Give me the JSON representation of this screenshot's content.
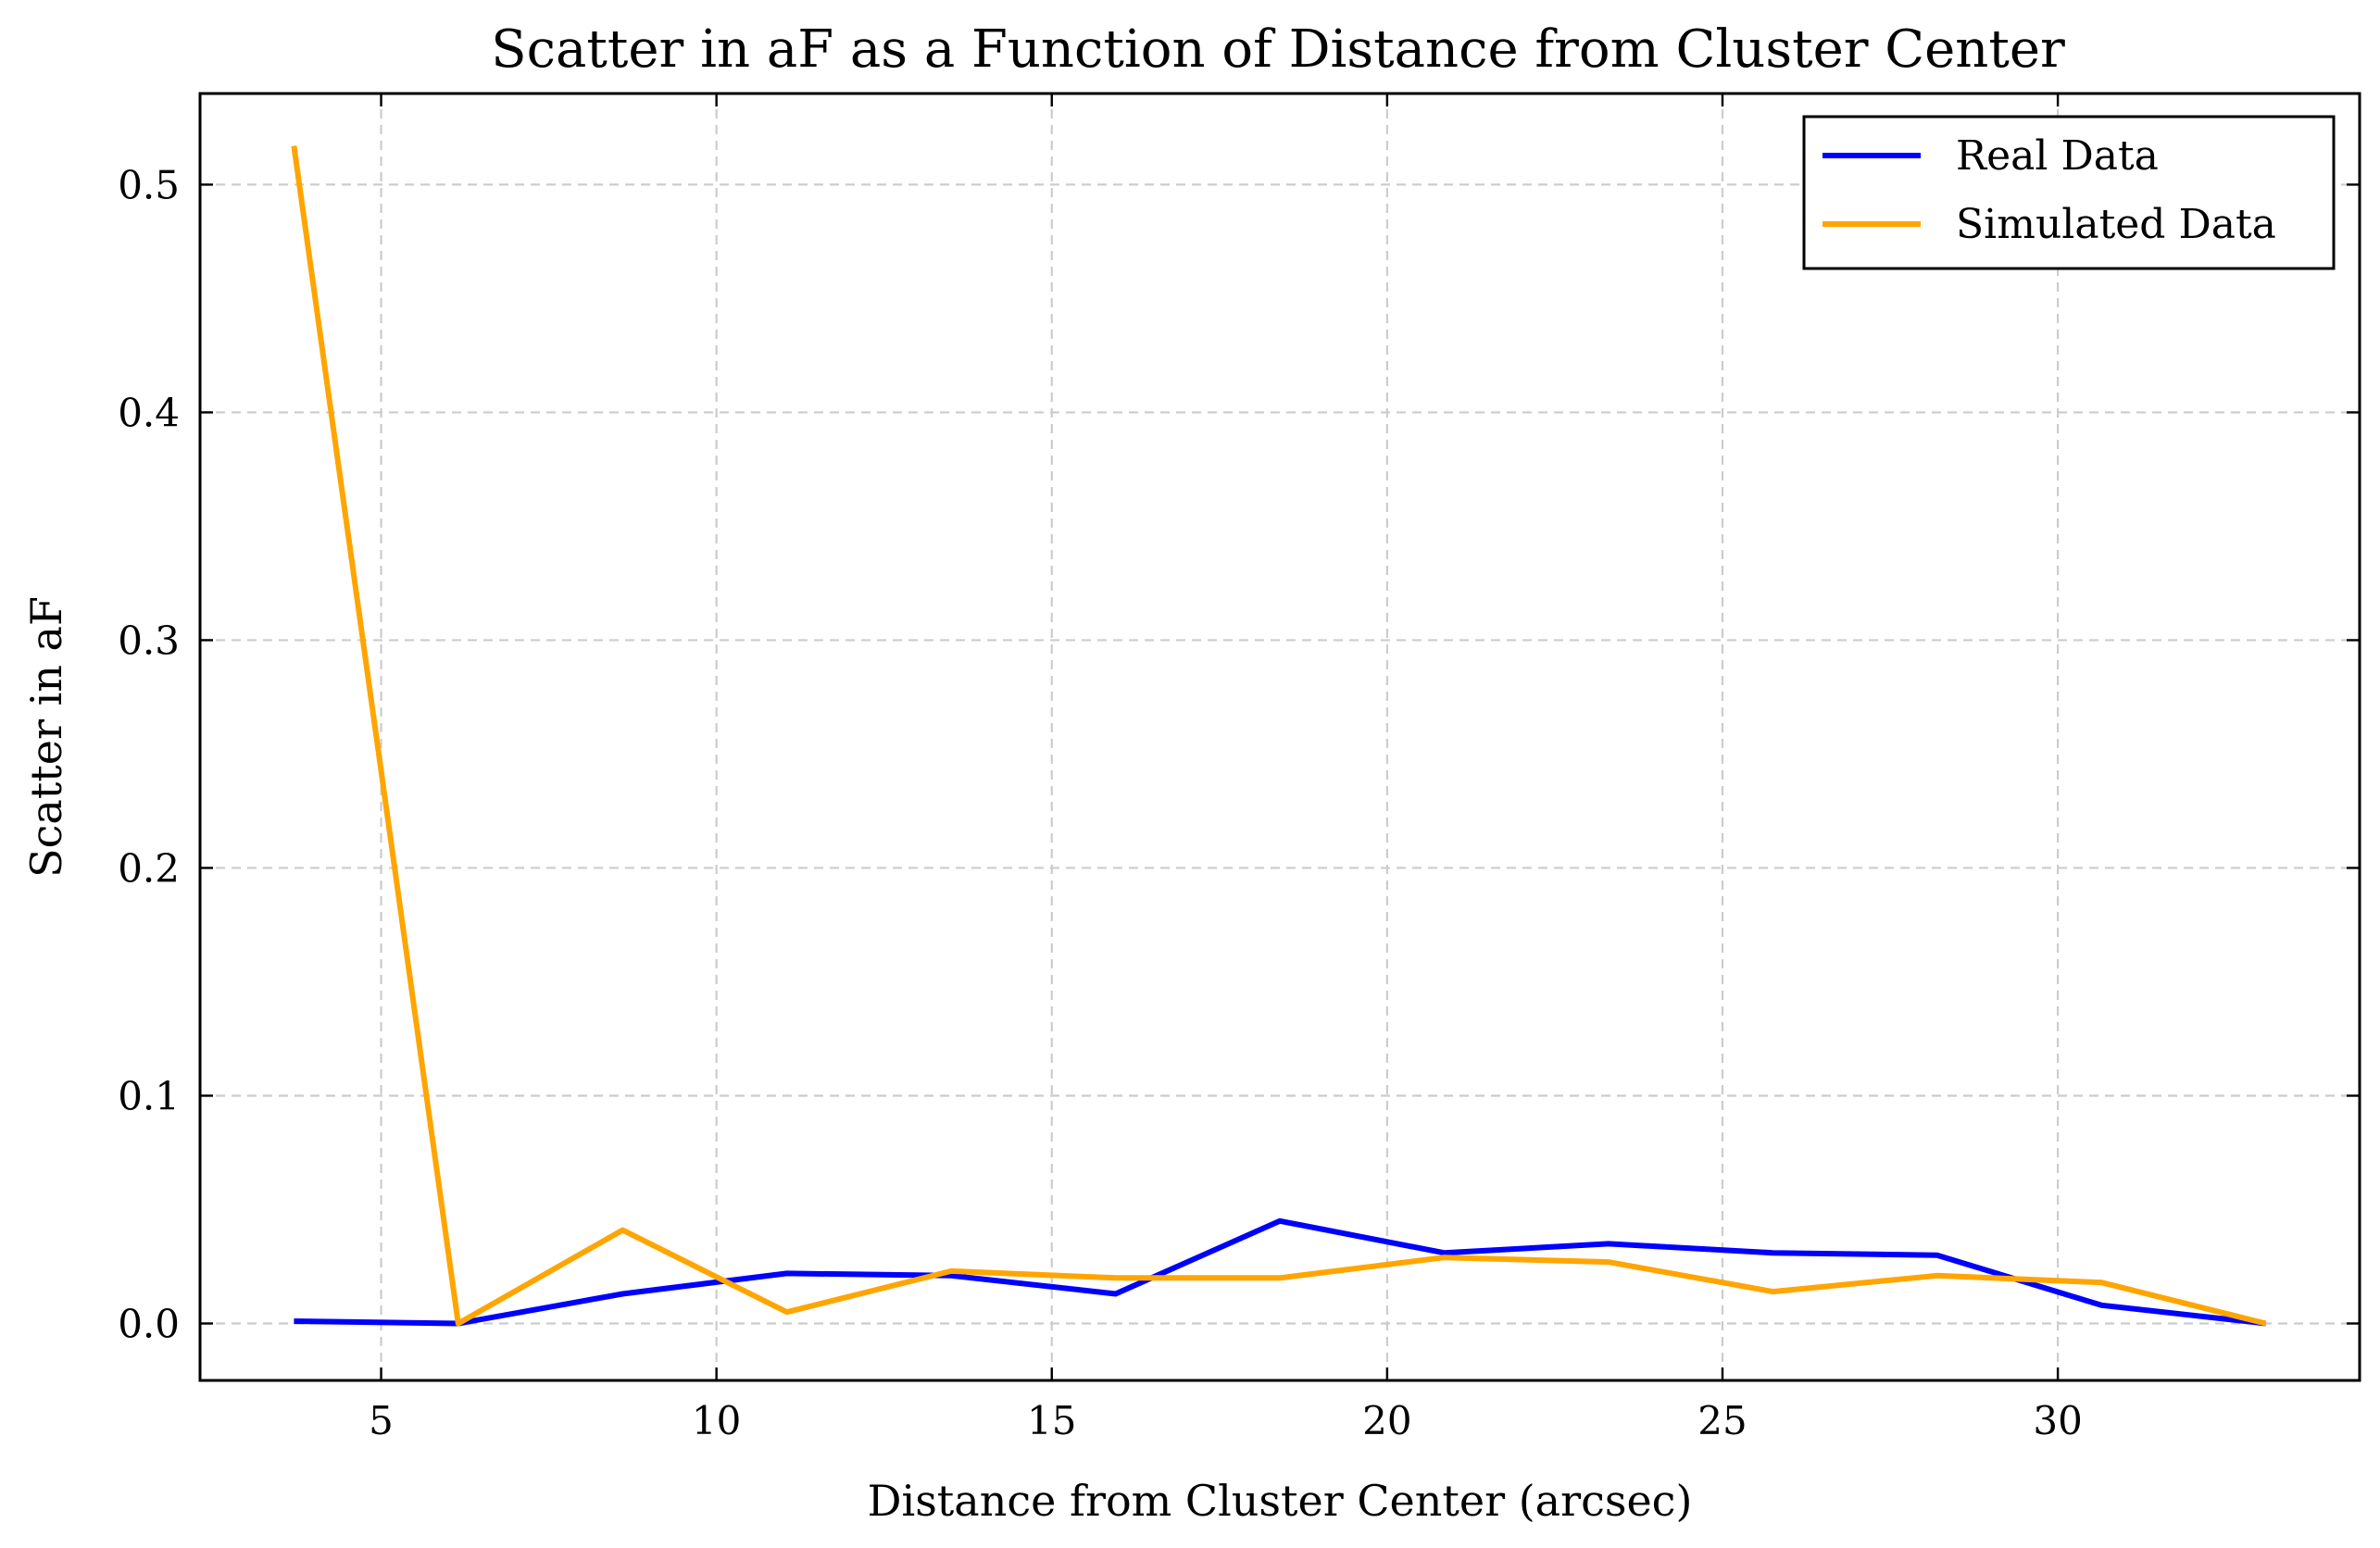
{
  "chart_data": {
    "type": "line",
    "title": "Scatter in aF as a Function of Distance from Cluster Center",
    "xlabel": "Distance from Cluster Center (arcsec)",
    "ylabel": "Scatter in aF",
    "xlim": [
      2.3,
      34.5
    ],
    "ylim": [
      -0.025,
      0.54
    ],
    "xticks": [
      5,
      10,
      15,
      20,
      25,
      30
    ],
    "xtick_labels": [
      "5",
      "10",
      "15",
      "20",
      "25",
      "30"
    ],
    "yticks": [
      0.0,
      0.1,
      0.2,
      0.3,
      0.4,
      0.5
    ],
    "ytick_labels": [
      "0.0",
      "0.1",
      "0.2",
      "0.3",
      "0.4",
      "0.5"
    ],
    "grid": true,
    "legend_position": "top-right",
    "x": [
      3.7,
      6.15,
      8.6,
      11.05,
      13.5,
      15.95,
      18.4,
      20.85,
      23.3,
      25.75,
      28.2,
      30.65,
      33.1
    ],
    "series": [
      {
        "name": "Real Data",
        "color": "#0000ff",
        "values": [
          0.001,
          0.0,
          0.013,
          0.022,
          0.021,
          0.013,
          0.045,
          0.031,
          0.035,
          0.031,
          0.03,
          0.008,
          0.0
        ]
      },
      {
        "name": "Simulated Data",
        "color": "#ffa500",
        "values": [
          0.517,
          0.0,
          0.041,
          0.005,
          0.023,
          0.02,
          0.02,
          0.029,
          0.027,
          0.014,
          0.021,
          0.018,
          0.0
        ]
      }
    ]
  }
}
